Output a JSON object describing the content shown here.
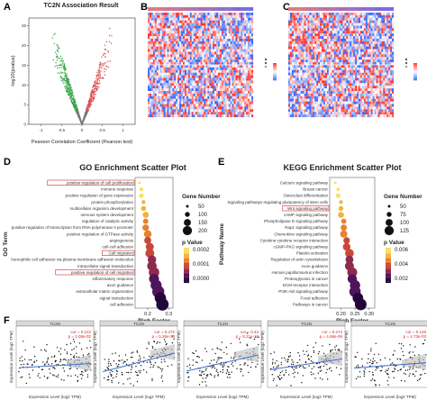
{
  "panels": {
    "A": {
      "letter": "A",
      "title": "TC2N Association Result",
      "xlabel": "Pearson Correlation Coefficient (Pearson test)",
      "ylabel": "-log10(pvalue)",
      "xticks": [
        "-1",
        "-0.5",
        "0",
        "0.5",
        "1"
      ],
      "yticks": [
        "0",
        "5",
        "10",
        "15",
        "20",
        "25"
      ]
    },
    "B": {
      "letter": "B"
    },
    "C": {
      "letter": "C"
    },
    "D": {
      "letter": "D",
      "title": "GO Enrichment Scatter Plot",
      "ylabel": "GO Term",
      "xlabel": "Rich Factor",
      "size_legend_title": "Gene Number",
      "size_legend": [
        "50",
        "100",
        "150",
        "200"
      ],
      "color_legend_title": "p Value",
      "color_legend": [
        "0.0002",
        "0.0001",
        "0.0000"
      ],
      "xticks": [
        "0.2",
        "0.3"
      ]
    },
    "E": {
      "letter": "E",
      "title": "KEGG Enrichment Scatter Plot",
      "ylabel": "Pathway Name",
      "xlabel": "Rich Factor",
      "size_legend_title": "Gene Number",
      "size_legend": [
        "50",
        "75",
        "100",
        "125"
      ],
      "color_legend_title": "p Value",
      "color_legend": [
        "0.006",
        "0.004",
        "0.002"
      ],
      "xticks": [
        "0.20",
        "0.25",
        "0.30"
      ]
    },
    "F": {
      "letter": "F",
      "strip": "TC2N",
      "xlabel": "Expression Level (log2 TPM)",
      "ylabel": "Expression Level (log2 TPM)"
    }
  },
  "colors": {
    "accent_red": "#d62728",
    "bubble_dark": "#2b0a3d",
    "bubble_light": "#f4d03f",
    "heat_hi": "#d73027",
    "heat_lo": "#4575b4"
  },
  "chart_data": [
    {
      "type": "bar",
      "panel": "D",
      "categories": [
        "positive regulation of cell proliferation",
        "immune response",
        "positive regulation of gene expression",
        "protein phosphorylation",
        "multicellular organism development",
        "nervous system development",
        "regulation of catalytic activity",
        "positive regulation of transcription from RNA polymerase II promoter",
        "positive regulation of GTPase activity",
        "angiogenesis",
        "cell-cell adhesion",
        "Cell migration",
        "homophilic cell adhesion via plasma membrane adhesion molecules",
        "intracellular signal transduction",
        "positive regulation of cell migration",
        "inflammatory response",
        "axon guidance",
        "extracellular matrix organization",
        "signal transduction",
        "cell adhesion"
      ],
      "highlighted": [
        "positive regulation of cell proliferation",
        "Cell migration",
        "positive regulation of cell migration"
      ],
      "values": [
        0.16,
        0.17,
        0.17,
        0.18,
        0.18,
        0.19,
        0.19,
        0.19,
        0.2,
        0.2,
        0.21,
        0.21,
        0.22,
        0.22,
        0.23,
        0.23,
        0.24,
        0.25,
        0.26,
        0.27
      ],
      "xlim": [
        0.14,
        0.32
      ]
    },
    {
      "type": "bar",
      "panel": "E",
      "categories": [
        "Calcium signaling pathway",
        "Breast cancer",
        "Osteoclast differentiation",
        "Signaling pathways regulating pluripotency of stem cells",
        "Wnt signaling pathway",
        "cAMP signaling pathway",
        "Phospholipase D signaling pathway",
        "Rap1 signaling pathway",
        "Chemokine signaling pathway",
        "Cytokine-cytokine receptor interaction",
        "cGMP-PKG signaling pathway",
        "Platelet activation",
        "Regulation of actin cytoskeleton",
        "Axon guidance",
        "Human papillomavirus infection",
        "Proteoglycans in cancer",
        "ECM-receptor interaction",
        "PI3K-Akt signaling pathway",
        "Focal adhesion",
        "Pathways in cancer"
      ],
      "highlighted": [
        "Wnt signaling pathway"
      ],
      "values": [
        0.18,
        0.19,
        0.19,
        0.2,
        0.2,
        0.2,
        0.21,
        0.21,
        0.21,
        0.22,
        0.22,
        0.23,
        0.23,
        0.23,
        0.24,
        0.24,
        0.25,
        0.25,
        0.26,
        0.27
      ],
      "xlim": [
        0.16,
        0.32
      ]
    },
    {
      "type": "scatter",
      "panel": "F",
      "series": [
        {
          "stat_cor": "cor = 0.122",
          "stat_p": "p = 2.08e-02"
        },
        {
          "stat_cor": "cor = 0.472",
          "stat_p": "p = 5.36e-23"
        },
        {
          "stat_cor": "cor = 0.43",
          "stat_p": "p = 8.21e-19"
        },
        {
          "stat_cor": "cor = 0.274",
          "stat_p": "p = 4.68e-08"
        },
        {
          "stat_cor": "cor = 0.148",
          "stat_p": "p = 4.73e-03"
        }
      ]
    }
  ]
}
